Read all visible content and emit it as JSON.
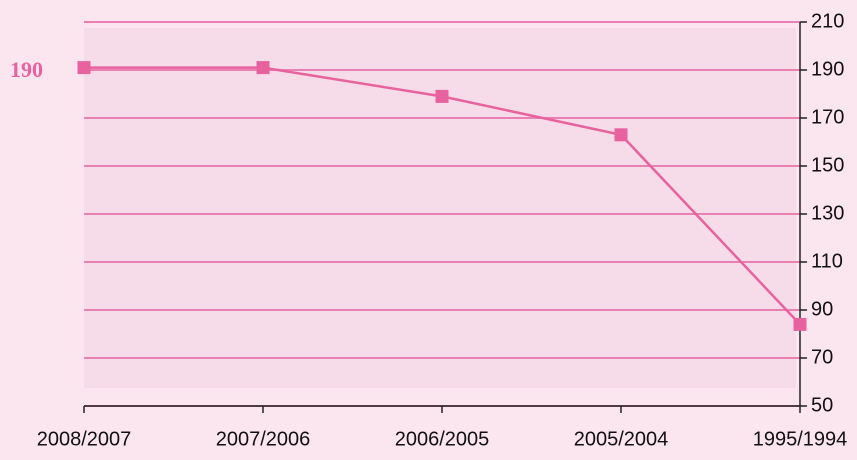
{
  "chart_data": {
    "type": "line",
    "categories": [
      "2008/2007",
      "2007/2006",
      "2006/2005",
      "2005/2004",
      "1995/1994"
    ],
    "series": [
      {
        "name": "",
        "color": "#e8629f",
        "values": [
          191,
          191,
          179,
          163,
          84
        ]
      }
    ],
    "ylim": [
      50,
      210
    ],
    "yticks": [
      50,
      70,
      90,
      110,
      130,
      150,
      170,
      190,
      210
    ],
    "grid": true,
    "annotations": [
      "190"
    ]
  }
}
